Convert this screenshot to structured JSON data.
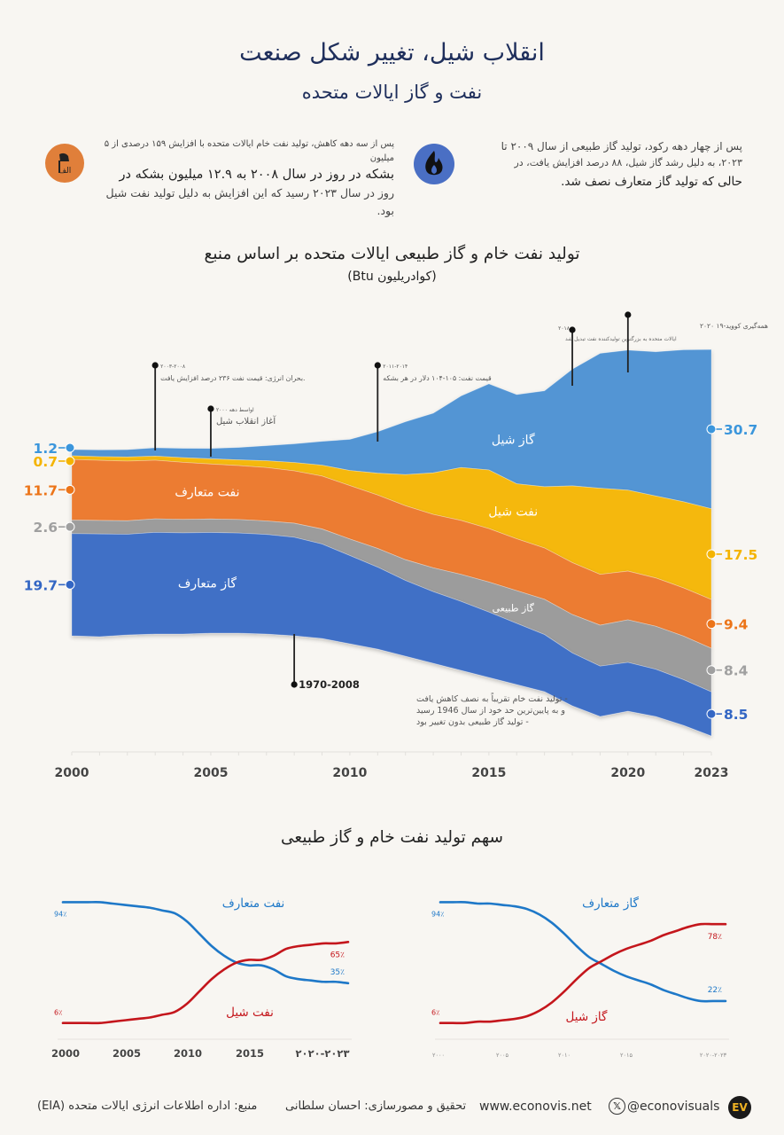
{
  "header": {
    "title": "انقلاب شیل، تغییر شکل صنعت",
    "subtitle": "نفت و گاز ایالات متحده"
  },
  "facts": [
    {
      "icon": "oil-barrel-icon",
      "icon_color": "#e07f3a",
      "icon_text": "الف",
      "line1": "پس از سه دهه کاهش، تولید نفت خام ایالات متحده با افزایش ۱۵۹ درصدی از ۵ میلیون",
      "line2": "بشکه در روز در سال ۲۰۰۸ به ۱۲.۹ میلیون بشکه در",
      "line3": "روز در سال ۲۰۲۳ رسید که این افزایش به دلیل تولید نفت شیل بود."
    },
    {
      "icon": "flame-icon",
      "icon_color": "#4a6fc4",
      "line1": "پس از چهار دهه رکود، تولید گاز طبیعی از سال ۲۰۰۹ تا",
      "line2": "۲۰۲۳، به دلیل رشد گاز شیل، ۸۸ درصد افزایش یافت، در",
      "line3": "حالی که تولید گاز متعارف نصف شد."
    }
  ],
  "chart_data": [
    {
      "type": "area",
      "title": "تولید نفت خام و گاز طبیعی ایالات متحده بر اساس منبع",
      "unit": "(کوادریلیون Btu)",
      "x": [
        2000,
        2001,
        2002,
        2003,
        2004,
        2005,
        2006,
        2007,
        2008,
        2009,
        2010,
        2011,
        2012,
        2013,
        2014,
        2015,
        2016,
        2017,
        2018,
        2019,
        2020,
        2021,
        2022,
        2023
      ],
      "x_ticks": [
        "2000",
        "2005",
        "2010",
        "2015",
        "2020",
        "2023"
      ],
      "series": [
        {
          "name": "گاز متعارف",
          "color": "#3f6fc6",
          "values": [
            19.7,
            19.8,
            19.4,
            19.6,
            19.5,
            19.4,
            19.3,
            19.2,
            19.0,
            18.2,
            17.0,
            15.8,
            14.6,
            13.8,
            13.3,
            12.6,
            11.8,
            11.0,
            10.2,
            9.7,
            9.4,
            9.1,
            8.8,
            8.5
          ],
          "start_label": "19.7",
          "end_label": "8.5"
        },
        {
          "name": "گاز طبیعی",
          "color": "#9c9c9c",
          "values": [
            2.6,
            2.6,
            2.6,
            2.6,
            2.6,
            2.6,
            2.6,
            2.6,
            2.7,
            2.9,
            3.2,
            3.6,
            4.0,
            4.6,
            5.2,
            5.8,
            6.3,
            6.8,
            7.4,
            7.9,
            8.2,
            8.3,
            8.4,
            8.4
          ],
          "start_label": "2.6",
          "end_label": "8.4"
        },
        {
          "name": "نفت متعارف",
          "color": "#ec7c33",
          "values": [
            11.7,
            11.6,
            11.5,
            11.3,
            11.0,
            10.6,
            10.4,
            10.3,
            10.1,
            10.2,
            10.3,
            10.3,
            10.4,
            10.3,
            10.4,
            10.3,
            10.0,
            9.9,
            10.0,
            9.8,
            9.4,
            9.3,
            9.3,
            9.4
          ],
          "start_label": "11.7",
          "end_label": "9.4"
        },
        {
          "name": "نفت شیل",
          "color": "#f5b80d",
          "values": [
            0.7,
            0.7,
            0.8,
            0.8,
            0.9,
            1.0,
            1.1,
            1.3,
            1.6,
            2.1,
            2.9,
            4.2,
            6.0,
            8.0,
            10.2,
            11.3,
            10.6,
            11.8,
            14.8,
            16.6,
            15.6,
            15.8,
            16.6,
            17.5
          ],
          "start_label": "0.7",
          "end_label": "17.5"
        },
        {
          "name": "گاز شیل",
          "color": "#5395d4",
          "values": [
            1.2,
            1.3,
            1.4,
            1.6,
            1.8,
            2.0,
            2.4,
            2.9,
            3.6,
            4.6,
            6.0,
            8.0,
            10.2,
            11.5,
            13.8,
            16.6,
            17.2,
            18.5,
            22.5,
            26.0,
            27.0,
            27.8,
            29.3,
            30.7
          ],
          "start_label": "1.2",
          "end_label": "30.7"
        }
      ],
      "layer_labels": [
        {
          "series": "گاز متعارف",
          "text": "گاز متعارف"
        },
        {
          "series": "نفت متعارف",
          "text": "نفت متعارف"
        },
        {
          "series": "گاز شیل",
          "text": "گاز شیل"
        },
        {
          "series": "نفت شیل",
          "text": "نفت شیل"
        },
        {
          "series": "گاز طبیعی",
          "text": "گاز طبیعی"
        }
      ],
      "annotations": [
        {
          "year": 2003,
          "date": "۲۰۰۳-۲۰۰۸",
          "text": "بحران انرژی: قیمت نفت ۲۳۶ درصد افزایش یافت."
        },
        {
          "year": 2005,
          "date": "اواسط دهه ۲۰۰۰",
          "text": "آغاز انقلاب شیل"
        },
        {
          "year": 2011,
          "date": "۲۰۱۱-۲۰۱۴",
          "text": "قیمت نفت: ۱۰۵-۱۰۴ دلار در هر بشکه"
        },
        {
          "year": 2018,
          "date": "۲۰۱۸",
          "text": "ایالات متحده به بزرگترین تولیدکننده نفت تبدیل شد"
        },
        {
          "year": 2020,
          "date": "۲۰۲۰",
          "text": "همه‌گیری کووید-۱۹"
        },
        {
          "year": 2008,
          "date": "1970-2008",
          "lines": [
            "- تولید نفت خام تقریباً به نصف کاهش یافت",
            "و به پایین‌ترین حد خود از سال 1946 رسید",
            "- تولید گاز طبیعی بدون تغییر بود"
          ]
        }
      ]
    },
    {
      "type": "line",
      "title": "سهم تولید نفت خام و گاز طبیعی",
      "x": [
        2000,
        2001,
        2002,
        2003,
        2004,
        2005,
        2006,
        2007,
        2008,
        2009,
        2010,
        2011,
        2012,
        2013,
        2014,
        2015,
        2016,
        2017,
        2018,
        2019,
        2020,
        2021,
        2022,
        2023
      ],
      "x_ticks": [
        "2000",
        "2005",
        "2010",
        "2015",
        "۲۰۲۰-۲۰۲۳"
      ],
      "ylim": [
        0,
        100
      ],
      "series": [
        {
          "name": "نفت متعارف",
          "color": "#1e78c8",
          "values": [
            94,
            94,
            94,
            94,
            93,
            92,
            91,
            90,
            88,
            86,
            80,
            71,
            62,
            55,
            50,
            48,
            48,
            45,
            40,
            38,
            37,
            36,
            36,
            35
          ],
          "start_label": "94٪",
          "end_label": "35٪"
        },
        {
          "name": "نفت شیل",
          "color": "#c4161c",
          "values": [
            6,
            6,
            6,
            6,
            7,
            8,
            9,
            10,
            12,
            14,
            20,
            29,
            38,
            45,
            50,
            52,
            52,
            55,
            60,
            62,
            63,
            64,
            64,
            65
          ],
          "start_label": "6٪",
          "end_label": "65٪"
        }
      ]
    },
    {
      "type": "line",
      "title": "سهم تولید نفت خام و گاز طبیعی",
      "x": [
        2000,
        2001,
        2002,
        2003,
        2004,
        2005,
        2006,
        2007,
        2008,
        2009,
        2010,
        2011,
        2012,
        2013,
        2014,
        2015,
        2016,
        2017,
        2018,
        2019,
        2020,
        2021,
        2022,
        2023
      ],
      "x_ticks": [
        "۲۰۰۰",
        "۲۰۰۵",
        "۲۰۱۰",
        "۲۰۱۵",
        "۲۰۲۰-۲۰۲۳"
      ],
      "ylim": [
        0,
        100
      ],
      "series": [
        {
          "name": "گاز متعارف",
          "color": "#1e78c8",
          "values": [
            94,
            94,
            94,
            93,
            93,
            92,
            91,
            89,
            85,
            79,
            71,
            62,
            54,
            49,
            44,
            40,
            37,
            34,
            30,
            27,
            24,
            22,
            22,
            22
          ],
          "start_label": "94٪",
          "end_label": "22٪"
        },
        {
          "name": "گاز شیل",
          "color": "#c4161c",
          "values": [
            6,
            6,
            6,
            7,
            7,
            8,
            9,
            11,
            15,
            21,
            29,
            38,
            46,
            51,
            56,
            60,
            63,
            66,
            70,
            73,
            76,
            78,
            78,
            78
          ],
          "start_label": "6٪",
          "end_label": "78٪"
        }
      ]
    }
  ],
  "footer": {
    "source": "منبع: اداره اطلاعات انرژی ایالات متحده (EIA)",
    "credit": "تحقیق و مصورسازی: احسان سلطانی",
    "website": "www.econovis.net",
    "handle": "@econovisuals",
    "logo_text": "EV"
  }
}
